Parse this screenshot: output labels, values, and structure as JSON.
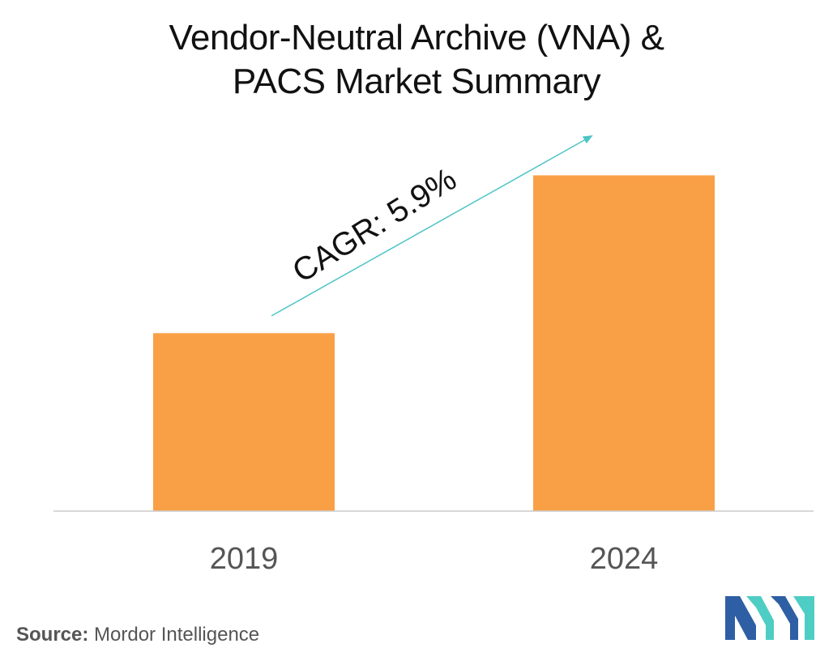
{
  "chart_data": {
    "type": "bar",
    "title_lines": [
      "Vendor-Neutral Archive (VNA) &",
      "PACS Market Summary"
    ],
    "categories": [
      "2019",
      "2024"
    ],
    "values": [
      0.53,
      1.0
    ],
    "ylim": [
      0,
      1.1
    ],
    "grid": false,
    "legend": "none",
    "annotation": "CAGR: 5.9%",
    "bar_color": "#f9a047",
    "arrow_color": "#4fc4c6",
    "axis_color": "#cccccc"
  },
  "source": {
    "label": "Source:",
    "text": " Mordor Intelligence"
  },
  "logo": {
    "icon": "mordor-intelligence-logo",
    "colors": [
      "#2e5fa5",
      "#4ecdc4"
    ]
  }
}
